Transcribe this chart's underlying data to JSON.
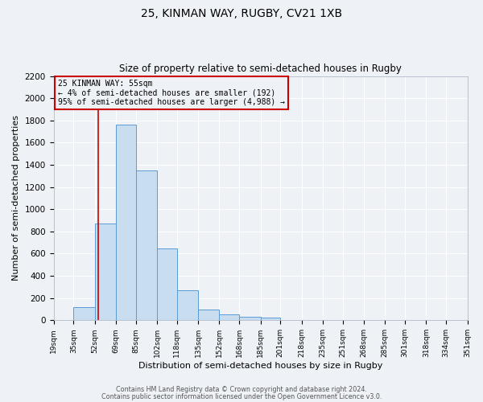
{
  "title": "25, KINMAN WAY, RUGBY, CV21 1XB",
  "subtitle": "Size of property relative to semi-detached houses in Rugby",
  "xlabel": "Distribution of semi-detached houses by size in Rugby",
  "ylabel": "Number of semi-detached properties",
  "bar_values": [
    0,
    120,
    870,
    1760,
    1350,
    650,
    270,
    100,
    50,
    35,
    25,
    0,
    0,
    0,
    0,
    0,
    0,
    0,
    0,
    0
  ],
  "bin_edges": [
    19,
    35,
    52,
    69,
    85,
    102,
    118,
    135,
    152,
    168,
    185,
    201,
    218,
    235,
    251,
    268,
    285,
    301,
    318,
    334,
    351
  ],
  "tick_labels": [
    "19sqm",
    "35sqm",
    "52sqm",
    "69sqm",
    "85sqm",
    "102sqm",
    "118sqm",
    "135sqm",
    "152sqm",
    "168sqm",
    "185sqm",
    "201sqm",
    "218sqm",
    "235sqm",
    "251sqm",
    "268sqm",
    "285sqm",
    "301sqm",
    "318sqm",
    "334sqm",
    "351sqm"
  ],
  "bar_color": "#c9ddf0",
  "bar_edge_color": "#5b9bd5",
  "property_line_x": 55,
  "property_line_color": "#cc0000",
  "ylim": [
    0,
    2200
  ],
  "yticks": [
    0,
    200,
    400,
    600,
    800,
    1000,
    1200,
    1400,
    1600,
    1800,
    2000,
    2200
  ],
  "annotation_title": "25 KINMAN WAY: 55sqm",
  "annotation_line1": "← 4% of semi-detached houses are smaller (192)",
  "annotation_line2": "95% of semi-detached houses are larger (4,988) →",
  "annotation_box_color": "#cc0000",
  "footer1": "Contains HM Land Registry data © Crown copyright and database right 2024.",
  "footer2": "Contains public sector information licensed under the Open Government Licence v3.0.",
  "background_color": "#eef2f7",
  "grid_color": "#ffffff",
  "figsize": [
    6.0,
    5.0
  ],
  "dpi": 100
}
